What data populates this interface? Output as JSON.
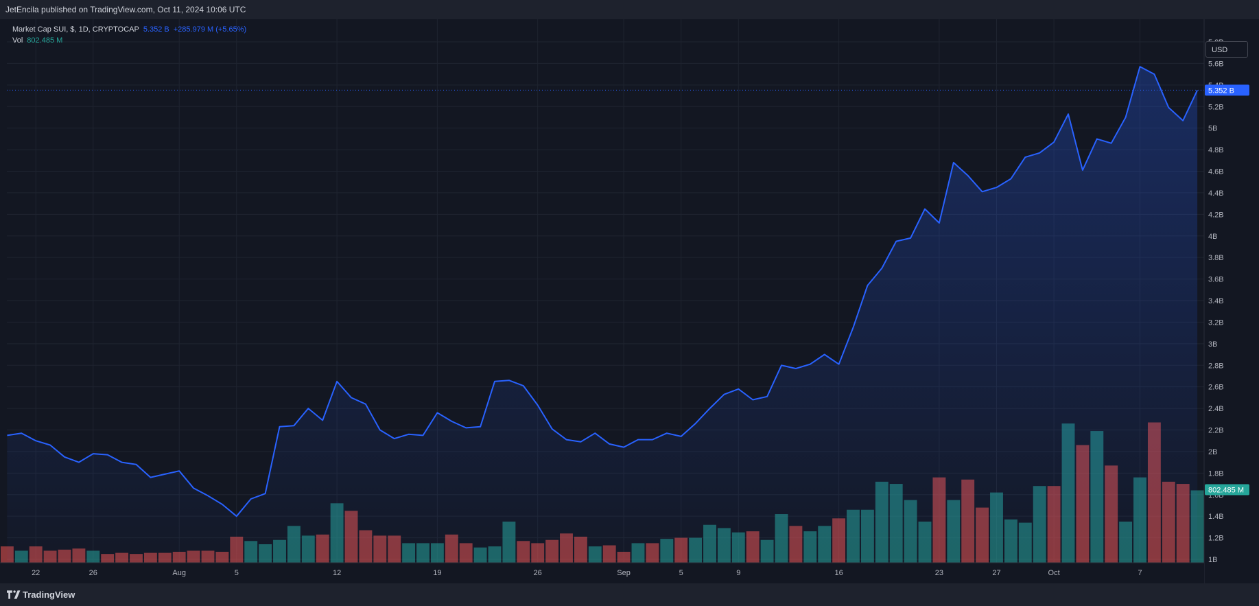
{
  "header": {
    "published_text": "JetEncila published on TradingView.com, Oct 11, 2024 10:06 UTC"
  },
  "legend": {
    "symbol": "Market Cap SUI, $, 1D, CRYPTOCAP",
    "last_value": "5.352 B",
    "change": "+285.979 M (+5.65%)",
    "vol_label": "Vol",
    "vol_value": "802.485 M"
  },
  "currency_button": "USD",
  "footer": {
    "brand": "TradingView",
    "logo_icon": "tradingview-logo-icon"
  },
  "colors": {
    "line": "#2962ff",
    "up_volume": "#26a69a",
    "down_volume": "#ef5350",
    "price_tag_bg": "#2962ff",
    "volume_tag_bg": "#26a69a"
  },
  "chart_data": {
    "type": "area",
    "y_unit": "USD (billions)",
    "ylim": [
      1.0,
      6.0
    ],
    "y_ticks": [
      1.0,
      1.2,
      1.4,
      1.6,
      1.8,
      2.0,
      2.2,
      2.4,
      2.6,
      2.8,
      3.0,
      3.2,
      3.4,
      3.6,
      3.8,
      4.0,
      4.2,
      4.4,
      4.6,
      4.8,
      5.0,
      5.2,
      5.4,
      5.6,
      5.8
    ],
    "y_tick_labels": [
      "1B",
      "1.2B",
      "1.4B",
      "1.6B",
      "1.8B",
      "2B",
      "2.2B",
      "2.4B",
      "2.6B",
      "2.8B",
      "3B",
      "3.2B",
      "3.4B",
      "3.6B",
      "3.8B",
      "4B",
      "4.2B",
      "4.4B",
      "4.6B",
      "4.8B",
      "5B",
      "5.2B",
      "5.4B",
      "5.6B",
      "5.8B"
    ],
    "x_ticks": [
      {
        "label": "22",
        "date": "2024-07-22"
      },
      {
        "label": "26",
        "date": "2024-07-26"
      },
      {
        "label": "Aug",
        "date": "2024-08-01"
      },
      {
        "label": "5",
        "date": "2024-08-05"
      },
      {
        "label": "12",
        "date": "2024-08-12"
      },
      {
        "label": "19",
        "date": "2024-08-19"
      },
      {
        "label": "26",
        "date": "2024-08-26"
      },
      {
        "label": "Sep",
        "date": "2024-09-01"
      },
      {
        "label": "5",
        "date": "2024-09-05"
      },
      {
        "label": "9",
        "date": "2024-09-09"
      },
      {
        "label": "16",
        "date": "2024-09-16"
      },
      {
        "label": "23",
        "date": "2024-09-23"
      },
      {
        "label": "27",
        "date": "2024-09-27"
      },
      {
        "label": "Oct",
        "date": "2024-10-01"
      },
      {
        "label": "7",
        "date": "2024-10-07"
      }
    ],
    "dates": [
      "2024-07-20",
      "2024-07-21",
      "2024-07-22",
      "2024-07-23",
      "2024-07-24",
      "2024-07-25",
      "2024-07-26",
      "2024-07-27",
      "2024-07-28",
      "2024-07-29",
      "2024-07-30",
      "2024-07-31",
      "2024-08-01",
      "2024-08-02",
      "2024-08-03",
      "2024-08-04",
      "2024-08-05",
      "2024-08-06",
      "2024-08-07",
      "2024-08-08",
      "2024-08-09",
      "2024-08-10",
      "2024-08-11",
      "2024-08-12",
      "2024-08-13",
      "2024-08-14",
      "2024-08-15",
      "2024-08-16",
      "2024-08-17",
      "2024-08-18",
      "2024-08-19",
      "2024-08-20",
      "2024-08-21",
      "2024-08-22",
      "2024-08-23",
      "2024-08-24",
      "2024-08-25",
      "2024-08-26",
      "2024-08-27",
      "2024-08-28",
      "2024-08-29",
      "2024-08-30",
      "2024-08-31",
      "2024-09-01",
      "2024-09-02",
      "2024-09-03",
      "2024-09-04",
      "2024-09-05",
      "2024-09-06",
      "2024-09-07",
      "2024-09-08",
      "2024-09-09",
      "2024-09-10",
      "2024-09-11",
      "2024-09-12",
      "2024-09-13",
      "2024-09-14",
      "2024-09-15",
      "2024-09-16",
      "2024-09-17",
      "2024-09-18",
      "2024-09-19",
      "2024-09-20",
      "2024-09-21",
      "2024-09-22",
      "2024-09-23",
      "2024-09-24",
      "2024-09-25",
      "2024-09-26",
      "2024-09-27",
      "2024-09-28",
      "2024-09-29",
      "2024-09-30",
      "2024-10-01",
      "2024-10-02",
      "2024-10-03",
      "2024-10-04",
      "2024-10-05",
      "2024-10-06",
      "2024-10-07",
      "2024-10-08",
      "2024-10-09",
      "2024-10-10",
      "2024-10-11"
    ],
    "series": [
      {
        "kind": "market_cap_line",
        "values": [
          2.15,
          2.17,
          2.1,
          2.06,
          1.95,
          1.9,
          1.98,
          1.97,
          1.9,
          1.88,
          1.76,
          1.79,
          1.82,
          1.66,
          1.59,
          1.51,
          1.4,
          1.56,
          1.61,
          2.23,
          2.24,
          2.4,
          2.29,
          2.65,
          2.5,
          2.44,
          2.2,
          2.12,
          2.16,
          2.15,
          2.36,
          2.28,
          2.22,
          2.23,
          2.65,
          2.66,
          2.61,
          2.43,
          2.21,
          2.11,
          2.09,
          2.17,
          2.07,
          2.04,
          2.11,
          2.11,
          2.17,
          2.14,
          2.26,
          2.4,
          2.53,
          2.58,
          2.48,
          2.51,
          2.8,
          2.77,
          2.81,
          2.9,
          2.81,
          3.15,
          3.54,
          3.7,
          3.95,
          3.98,
          4.25,
          4.12,
          4.68,
          4.56,
          4.41,
          4.45,
          4.53,
          4.73,
          4.77,
          4.87,
          5.13,
          4.61,
          4.9,
          4.86,
          5.1,
          5.57,
          5.5,
          5.19,
          5.07,
          5.352
        ]
      },
      {
        "kind": "volume",
        "values": [
          1.12,
          1.08,
          1.12,
          1.08,
          1.09,
          1.1,
          1.08,
          1.05,
          1.06,
          1.05,
          1.06,
          1.06,
          1.07,
          1.08,
          1.08,
          1.07,
          1.21,
          1.17,
          1.14,
          1.18,
          1.31,
          1.22,
          1.23,
          1.52,
          1.45,
          1.27,
          1.22,
          1.22,
          1.15,
          1.15,
          1.15,
          1.23,
          1.15,
          1.11,
          1.12,
          1.35,
          1.17,
          1.15,
          1.18,
          1.24,
          1.21,
          1.12,
          1.13,
          1.07,
          1.15,
          1.15,
          1.19,
          1.2,
          1.2,
          1.32,
          1.29,
          1.25,
          1.26,
          1.18,
          1.42,
          1.31,
          1.26,
          1.31,
          1.38,
          1.46,
          1.46,
          1.72,
          1.7,
          1.55,
          1.35,
          1.76,
          1.55,
          1.74,
          1.48,
          1.62,
          1.37,
          1.34,
          1.68,
          1.68,
          2.26,
          2.06,
          2.19,
          1.87,
          1.35,
          1.76,
          2.27,
          1.72,
          1.7,
          1.64
        ],
        "direction": [
          "down",
          "up",
          "down",
          "down",
          "down",
          "down",
          "up",
          "down",
          "down",
          "down",
          "down",
          "down",
          "down",
          "down",
          "down",
          "down",
          "down",
          "up",
          "up",
          "up",
          "up",
          "up",
          "down",
          "up",
          "down",
          "down",
          "down",
          "down",
          "up",
          "up",
          "up",
          "down",
          "down",
          "up",
          "up",
          "up",
          "down",
          "down",
          "down",
          "down",
          "down",
          "up",
          "down",
          "down",
          "up",
          "down",
          "up",
          "down",
          "up",
          "up",
          "up",
          "up",
          "down",
          "up",
          "up",
          "down",
          "up",
          "up",
          "down",
          "up",
          "up",
          "up",
          "up",
          "up",
          "up",
          "down",
          "up",
          "down",
          "down",
          "up",
          "up",
          "up",
          "up",
          "down",
          "up",
          "down",
          "up",
          "down",
          "up",
          "up",
          "down",
          "down",
          "down",
          "up"
        ]
      }
    ],
    "last_price_label": "5.352 B",
    "last_volume_label": "802.485 M",
    "grid": true,
    "price_scale_position": "right"
  }
}
